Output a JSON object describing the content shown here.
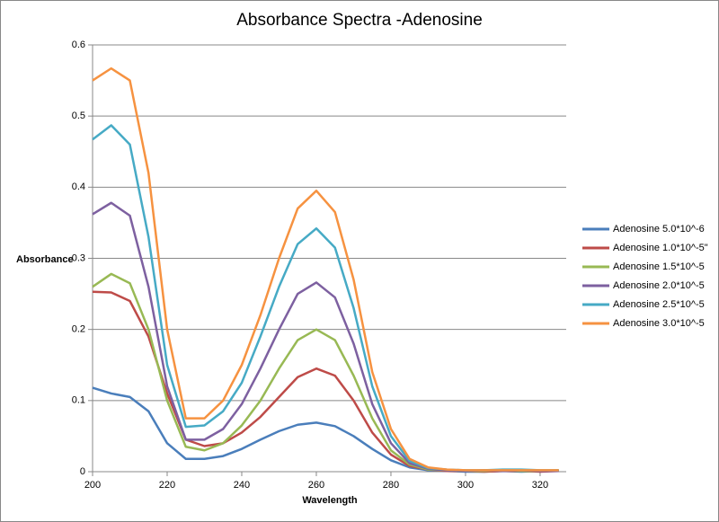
{
  "chart_data": {
    "type": "line",
    "title": "Absorbance Spectra -Adenosine",
    "x_label": "Wavelength",
    "y_label": "Absorbance",
    "x": [
      200,
      205,
      210,
      215,
      220,
      225,
      230,
      235,
      240,
      245,
      250,
      255,
      260,
      265,
      270,
      275,
      280,
      285,
      290,
      295,
      300,
      305,
      310,
      315,
      320,
      325
    ],
    "xlim": [
      200,
      327
    ],
    "xticks": [
      200,
      220,
      240,
      260,
      280,
      300,
      320
    ],
    "ylim": [
      0,
      0.6
    ],
    "yticks": [
      0,
      0.1,
      0.2,
      0.3,
      0.4,
      0.5,
      0.6
    ],
    "grid": true,
    "legend": "right",
    "series": [
      {
        "name": "Adenosine 5.0*10^-6",
        "color": "#4a7ebb",
        "values": [
          0.118,
          0.11,
          0.105,
          0.085,
          0.04,
          0.018,
          0.018,
          0.022,
          0.032,
          0.045,
          0.057,
          0.066,
          0.069,
          0.064,
          0.05,
          0.032,
          0.016,
          0.006,
          0.002,
          0.001,
          0,
          0,
          0.001,
          0,
          0.001,
          0.001
        ]
      },
      {
        "name": "Adenosine 1.0*10^-5\"",
        "color": "#be4b48",
        "values": [
          0.253,
          0.252,
          0.24,
          0.19,
          0.11,
          0.045,
          0.036,
          0.04,
          0.055,
          0.077,
          0.105,
          0.133,
          0.145,
          0.135,
          0.1,
          0.055,
          0.024,
          0.008,
          0.003,
          0.001,
          0.001,
          0,
          0.001,
          0.001,
          0,
          0.001
        ]
      },
      {
        "name": "Adenosine 1.5*10^-5",
        "color": "#98b954",
        "values": [
          0.26,
          0.278,
          0.265,
          0.2,
          0.1,
          0.035,
          0.03,
          0.04,
          0.065,
          0.1,
          0.145,
          0.185,
          0.2,
          0.185,
          0.135,
          0.075,
          0.03,
          0.01,
          0.003,
          0.002,
          0.001,
          0.001,
          0.002,
          0.001,
          0.001,
          0.002
        ]
      },
      {
        "name": "Adenosine 2.0*10^-5",
        "color": "#7d60a0",
        "values": [
          0.362,
          0.378,
          0.36,
          0.26,
          0.12,
          0.045,
          0.045,
          0.06,
          0.095,
          0.145,
          0.2,
          0.25,
          0.266,
          0.245,
          0.18,
          0.095,
          0.04,
          0.012,
          0.004,
          0.002,
          0.001,
          0.002,
          0.001,
          0.002,
          0.001,
          0.001
        ]
      },
      {
        "name": "Adenosine 2.5*10^-5",
        "color": "#46aac5",
        "values": [
          0.467,
          0.487,
          0.46,
          0.33,
          0.15,
          0.063,
          0.065,
          0.085,
          0.125,
          0.19,
          0.26,
          0.32,
          0.342,
          0.315,
          0.23,
          0.12,
          0.05,
          0.015,
          0.005,
          0.003,
          0.002,
          0.002,
          0.003,
          0.003,
          0.002,
          0.002
        ]
      },
      {
        "name": "Adenosine 3.0*10^-5",
        "color": "#f69240",
        "values": [
          0.55,
          0.567,
          0.55,
          0.42,
          0.2,
          0.075,
          0.075,
          0.1,
          0.15,
          0.22,
          0.3,
          0.37,
          0.395,
          0.365,
          0.27,
          0.14,
          0.06,
          0.018,
          0.006,
          0.003,
          0.002,
          0.002,
          0.002,
          0.002,
          0.002,
          0.002
        ]
      }
    ]
  }
}
